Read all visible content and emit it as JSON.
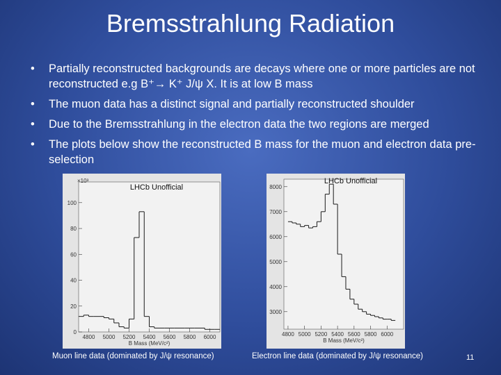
{
  "title": "Bremsstrahlung Radiation",
  "bullets": [
    "Partially reconstructed backgrounds are decays where one or more particles are not reconstructed e.g B⁺→ K⁺ J/ψ X. It is at low B mass",
    "The muon data has a distinct signal and partially reconstructed shoulder",
    "Due to the Bremsstrahlung in the electron data the two regions are merged",
    "The plots below show the reconstructed B mass for the muon and electron data pre-selection"
  ],
  "captions": [
    "Muon line data (dominated by J/ψ resonance)",
    "Electron line data (dominated by J/ψ resonance)"
  ],
  "page_number": "11",
  "chart_data": [
    {
      "type": "histogram",
      "title": "LHCb Unofficial",
      "y_multiplier": "×10³",
      "x_label": "B Mass (MeV/c²)",
      "color": "#1a1a1a",
      "bins": [
        4700,
        4750,
        4800,
        4850,
        4900,
        4950,
        5000,
        5050,
        5100,
        5150,
        5200,
        5250,
        5300,
        5350,
        5400,
        5450,
        5500,
        5550,
        5600,
        5650,
        5700,
        5750,
        5800,
        5850,
        5900,
        5950,
        6000,
        6050,
        6100
      ],
      "values": [
        12,
        13,
        12,
        12,
        12,
        11,
        10,
        7,
        4,
        3,
        10,
        73,
        93,
        12,
        4,
        3,
        3,
        3,
        3,
        3,
        3,
        3,
        3,
        3,
        3,
        2,
        2,
        2
      ],
      "xlim": [
        4700,
        6100
      ],
      "xticks": [
        4800,
        5000,
        5200,
        5400,
        5600,
        5800,
        6000
      ],
      "ylim": [
        0,
        116
      ],
      "yticks": [
        0,
        20,
        40,
        60,
        80,
        100
      ]
    },
    {
      "type": "histogram",
      "title": "LHCb Unofficial",
      "x_label": "B Mass (MeV/c²)",
      "color": "#1a1a1a",
      "bins": [
        4800,
        4850,
        4900,
        4950,
        5000,
        5050,
        5100,
        5150,
        5200,
        5250,
        5300,
        5350,
        5400,
        5450,
        5500,
        5550,
        5600,
        5650,
        5700,
        5750,
        5800,
        5850,
        5900,
        5950,
        6000,
        6050,
        6100
      ],
      "values": [
        6600,
        6550,
        6500,
        6400,
        6450,
        6350,
        6400,
        6600,
        7000,
        7700,
        8100,
        7300,
        5300,
        4400,
        3900,
        3500,
        3300,
        3100,
        3000,
        2900,
        2850,
        2800,
        2750,
        2700,
        2700,
        2650
      ],
      "xlim": [
        4750,
        6200
      ],
      "xticks": [
        4800,
        5000,
        5200,
        5400,
        5600,
        5800,
        6000
      ],
      "ylim": [
        2300,
        8300
      ],
      "yticks": [
        3000,
        4000,
        5000,
        6000,
        7000,
        8000
      ]
    }
  ]
}
